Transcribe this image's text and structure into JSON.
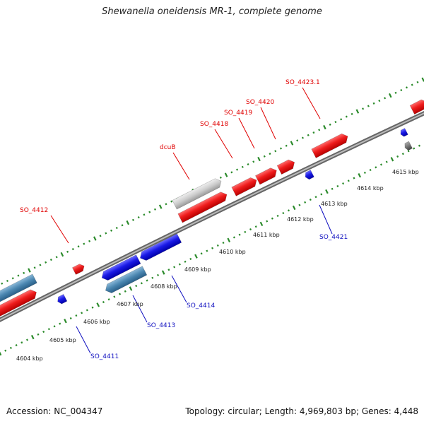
{
  "title": "Shewanella oneidensis MR-1, complete genome",
  "footer": {
    "accession": "Accession: NC_004347",
    "stats": "Topology: circular; Length: 4,969,803 bp; Genes: 4,448"
  },
  "colors": {
    "forward_gene": "#ee1c1c",
    "reverse_gene": "#1a1ae6",
    "rna_forward": "#c8c8c8",
    "rna_reverse": "#4a86b0",
    "backbone": "#888888",
    "tick": "#2a8a2a",
    "label_forward": "#e00000",
    "label_reverse": "#1010c0"
  },
  "tick_labels": [
    "4604 kbp",
    "4605 kbp",
    "4606 kbp",
    "4607 kbp",
    "4608 kbp",
    "4609 kbp",
    "4610 kbp",
    "4611 kbp",
    "4612 kbp",
    "4613 kbp",
    "4614 kbp",
    "4615 kbp"
  ],
  "forward_labels": [
    "SO_4412",
    "dcuB",
    "SO_4418",
    "SO_4419",
    "SO_4420",
    "SO_4423.1"
  ],
  "reverse_labels": [
    "SO_4411",
    "SO_4413",
    "SO_4414",
    "SO_4421"
  ]
}
